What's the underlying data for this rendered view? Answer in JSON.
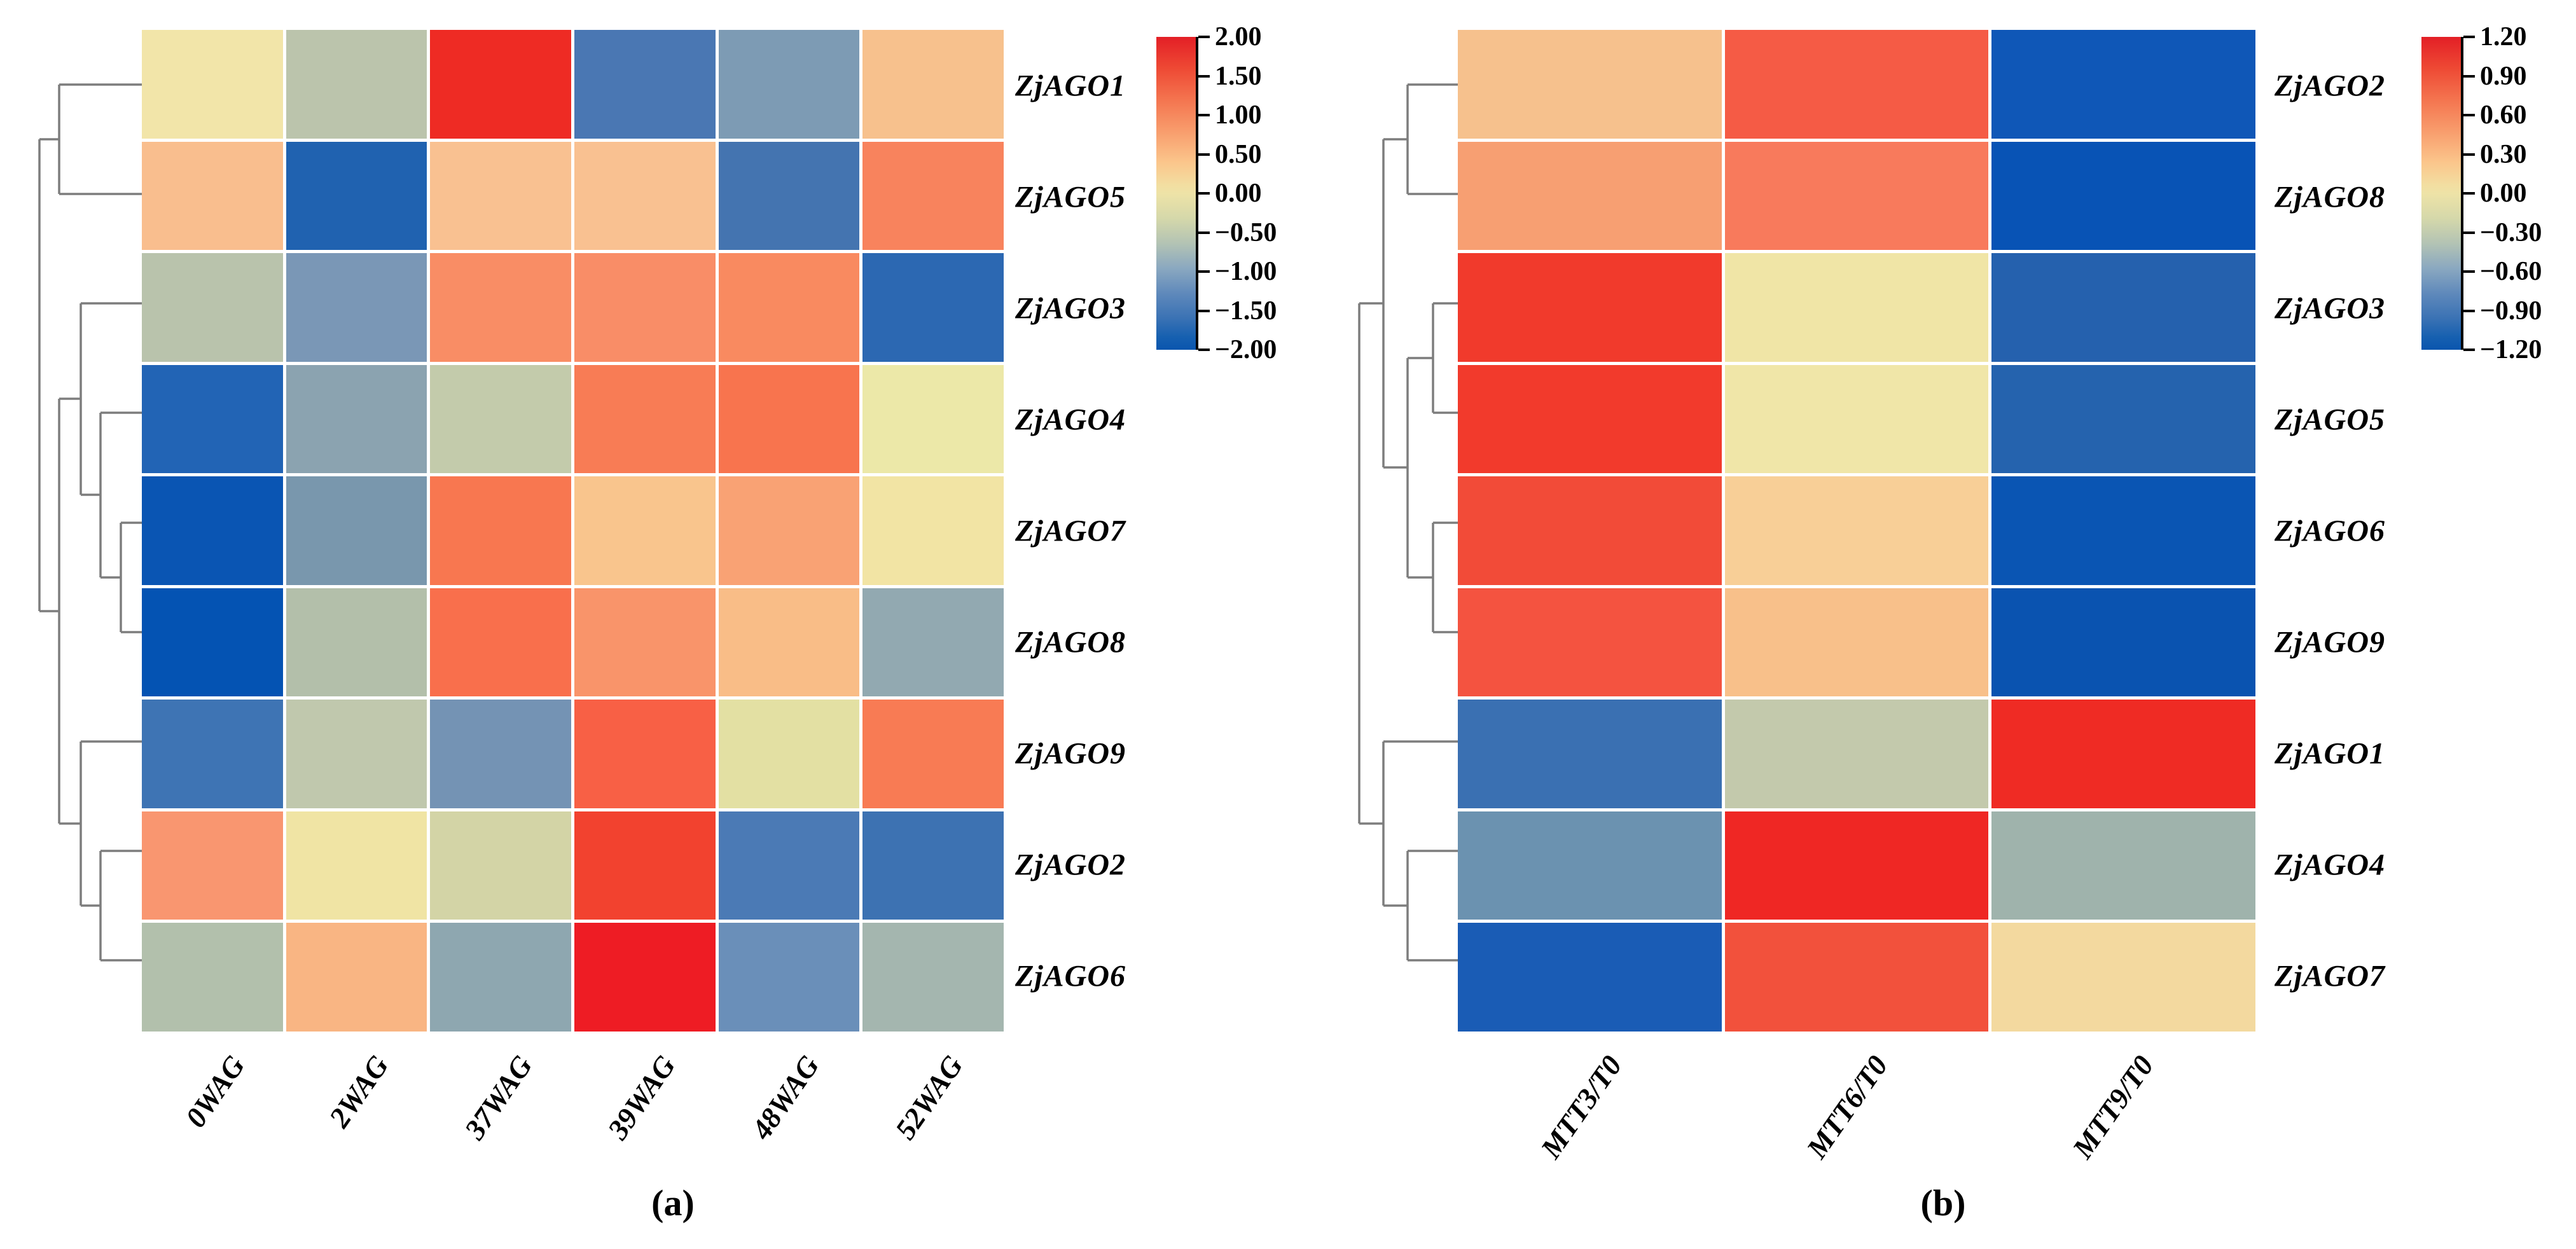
{
  "panels": [
    {
      "id": "a",
      "caption": "(a)",
      "row_labels": [
        "ZjAGO1",
        "ZjAGO5",
        "ZjAGO3",
        "ZjAGO4",
        "ZjAGO7",
        "ZjAGO8",
        "ZjAGO9",
        "ZjAGO2",
        "ZjAGO6"
      ],
      "col_labels": [
        "0WAG",
        "2WAG",
        "37WAG",
        "39WAG",
        "48WAG",
        "52WAG"
      ],
      "colorbar": {
        "ticks": [
          "2.00",
          "1.50",
          "1.00",
          "0.50",
          "0.00",
          "−0.50",
          "−1.00",
          "−1.50",
          "−2.00"
        ],
        "max": 2.0,
        "min": -2.0
      },
      "cell_colors": [
        [
          "#f2e5a9",
          "#bbc4ac",
          "#ee2b24",
          "#4a77b3",
          "#7d9bb4",
          "#f7c18d"
        ],
        [
          "#f9be8e",
          "#2062b0",
          "#f9c191",
          "#f9c191",
          "#4474b0",
          "#f8835d"
        ],
        [
          "#b9c3ac",
          "#7a97b6",
          "#f98d65",
          "#f98d67",
          "#f98a60",
          "#2c68b2"
        ],
        [
          "#2264b5",
          "#8ba3b0",
          "#c3cbab",
          "#f87c55",
          "#f8744e",
          "#ece8a8"
        ],
        [
          "#0a55b3",
          "#7997ad",
          "#f87750",
          "#f9c58d",
          "#f9a274",
          "#f2e4a4"
        ],
        [
          "#0453b3",
          "#b3bfaa",
          "#f96f4c",
          "#f9946a",
          "#f9bd87",
          "#92a9b1"
        ],
        [
          "#3e74b4",
          "#c0c8ad",
          "#7493b4",
          "#f86045",
          "#e3e0a3",
          "#f87b54"
        ],
        [
          "#f99670",
          "#f0e4a4",
          "#d3d4a6",
          "#f2422f",
          "#4b7ab5",
          "#3d72b2"
        ],
        [
          "#b2c0ac",
          "#f9b583",
          "#8ea7b0",
          "#ee1c24",
          "#6a8fb9",
          "#a4b6af"
        ]
      ]
    },
    {
      "id": "b",
      "caption": "(b)",
      "row_labels": [
        "ZjAGO2",
        "ZjAGO8",
        "ZjAGO3",
        "ZjAGO5",
        "ZjAGO6",
        "ZjAGO9",
        "ZjAGO1",
        "ZjAGO4",
        "ZjAGO7"
      ],
      "col_labels": [
        "MTT3/T0",
        "MTT6/T0",
        "MTT9/T0"
      ],
      "colorbar": {
        "ticks": [
          "1.20",
          "0.90",
          "0.60",
          "0.30",
          "0.00",
          "−0.30",
          "−0.60",
          "−0.90",
          "−1.20"
        ],
        "max": 1.2,
        "min": -1.2
      },
      "cell_colors": [
        [
          "#f6c18d",
          "#f55b45",
          "#0f57b7"
        ],
        [
          "#f79f72",
          "#f87a5c",
          "#0853b5"
        ],
        [
          "#f13a2c",
          "#f0e5a6",
          "#2561ae"
        ],
        [
          "#f23a2c",
          "#f0e6a8",
          "#2563ae"
        ],
        [
          "#f24b38",
          "#f8cf97",
          "#0a55b3"
        ],
        [
          "#f45340",
          "#f8c08a",
          "#0a53b0"
        ],
        [
          "#3a70b2",
          "#c3c9ac",
          "#ef2b24"
        ],
        [
          "#6b92b0",
          "#ef2724",
          "#9fb3ac"
        ],
        [
          "#1a5cb5",
          "#f2513c",
          "#f3d99f"
        ]
      ]
    }
  ],
  "chart_data": [
    {
      "type": "heatmap",
      "title": "(a)",
      "rows": [
        "ZjAGO1",
        "ZjAGO5",
        "ZjAGO3",
        "ZjAGO4",
        "ZjAGO7",
        "ZjAGO8",
        "ZjAGO9",
        "ZjAGO2",
        "ZjAGO6"
      ],
      "columns": [
        "0WAG",
        "2WAG",
        "37WAG",
        "39WAG",
        "48WAG",
        "52WAG"
      ],
      "values": [
        [
          0.1,
          -0.35,
          1.95,
          -1.3,
          -0.95,
          0.7
        ],
        [
          0.75,
          -1.65,
          0.7,
          0.7,
          -1.35,
          1.25
        ],
        [
          -0.4,
          -1.0,
          1.15,
          1.15,
          1.2,
          -1.55
        ],
        [
          -1.6,
          -0.8,
          -0.3,
          1.3,
          1.35,
          0.05
        ],
        [
          -1.85,
          -0.9,
          1.3,
          0.6,
          0.95,
          0.1
        ],
        [
          -1.9,
          -0.5,
          1.4,
          1.05,
          0.75,
          -0.75
        ],
        [
          -1.35,
          -0.35,
          -1.0,
          1.5,
          0.0,
          1.25
        ],
        [
          1.0,
          0.1,
          -0.15,
          1.8,
          -1.25,
          -1.35
        ],
        [
          -0.45,
          0.85,
          -0.7,
          2.0,
          -1.05,
          -0.6
        ]
      ],
      "value_range": [
        -2.0,
        2.0
      ],
      "colormap": "red-yellow-blue",
      "colorbar_ticks": [
        2.0,
        1.5,
        1.0,
        0.5,
        0.0,
        -0.5,
        -1.0,
        -1.5,
        -2.0
      ],
      "legend_position": "right",
      "row_dendrogram": "left",
      "grid": false
    },
    {
      "type": "heatmap",
      "title": "(b)",
      "rows": [
        "ZjAGO2",
        "ZjAGO8",
        "ZjAGO3",
        "ZjAGO5",
        "ZjAGO6",
        "ZjAGO9",
        "ZjAGO1",
        "ZjAGO4",
        "ZjAGO7"
      ],
      "columns": [
        "MTT3/T0",
        "MTT6/T0",
        "MTT9/T0"
      ],
      "values": [
        [
          0.4,
          0.9,
          -1.15
        ],
        [
          0.55,
          0.75,
          -1.15
        ],
        [
          1.1,
          0.0,
          -1.0
        ],
        [
          1.1,
          0.0,
          -1.0
        ],
        [
          1.0,
          0.3,
          -1.15
        ],
        [
          0.95,
          0.4,
          -1.15
        ],
        [
          -0.95,
          -0.25,
          1.2
        ],
        [
          -0.75,
          1.2,
          -0.5
        ],
        [
          -1.1,
          0.95,
          0.25
        ]
      ],
      "value_range": [
        -1.2,
        1.2
      ],
      "colormap": "red-yellow-blue",
      "colorbar_ticks": [
        1.2,
        0.9,
        0.6,
        0.3,
        0.0,
        -0.3,
        -0.6,
        -0.9,
        -1.2
      ],
      "legend_position": "right",
      "row_dendrogram": "left",
      "grid": false
    }
  ]
}
